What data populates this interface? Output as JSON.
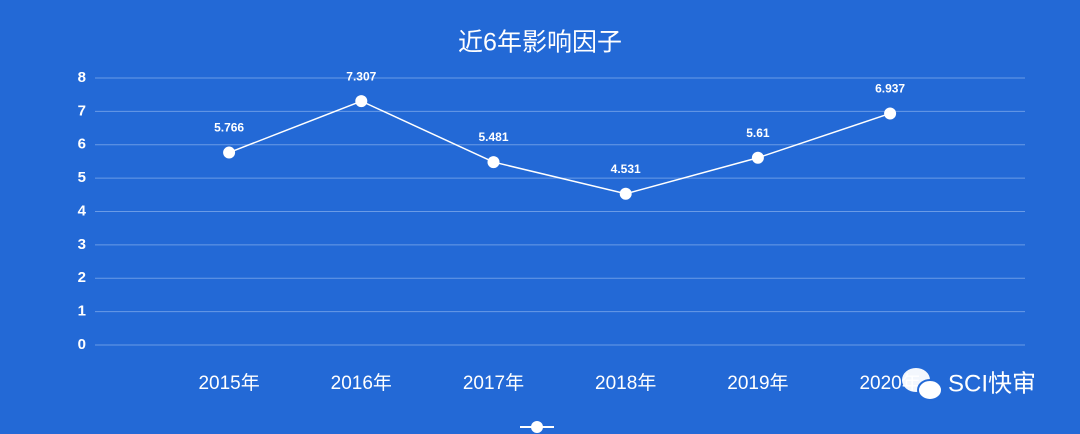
{
  "chart_data": {
    "type": "line",
    "title": "近6年影响因子",
    "categories": [
      "2015年",
      "2016年",
      "2017年",
      "2018年",
      "2019年",
      "2020年"
    ],
    "series": [
      {
        "color": "#ffffff",
        "values": [
          5.766,
          7.307,
          5.481,
          4.531,
          5.61,
          6.937
        ]
      }
    ],
    "ylim": [
      0,
      8
    ],
    "yticks": [
      0,
      1,
      2,
      3,
      4,
      5,
      6,
      7,
      8
    ],
    "grid": true,
    "watermark": "SCI快审"
  }
}
